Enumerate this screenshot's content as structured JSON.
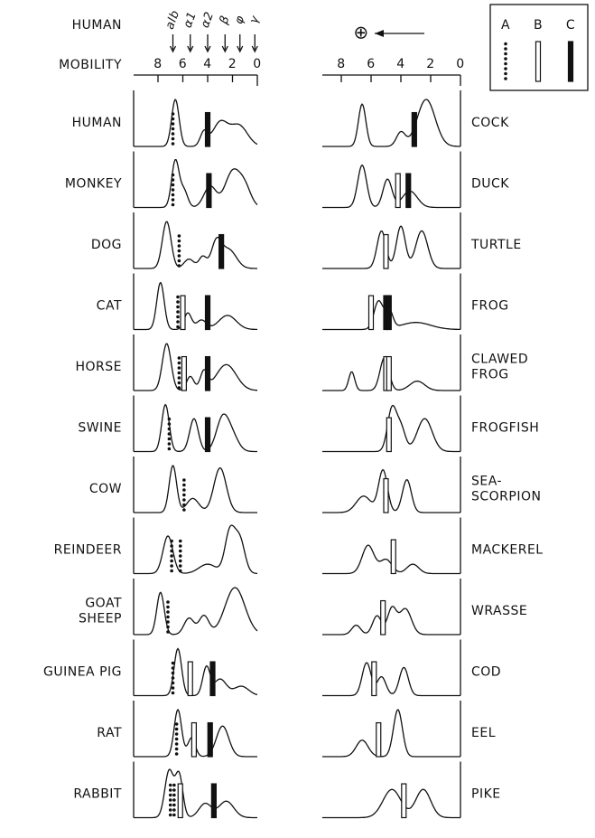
{
  "header": {
    "species": "HUMAN",
    "axis_label": "MOBILITY",
    "anode": "⊕",
    "fractions": [
      {
        "label": "alb",
        "at": 6.8
      },
      {
        "label": "α1",
        "at": 5.4
      },
      {
        "label": "α2",
        "at": 4.0
      },
      {
        "label": "β",
        "at": 2.6
      },
      {
        "label": "φ",
        "at": 1.4
      },
      {
        "label": "γ",
        "at": 0.2
      }
    ]
  },
  "axis": {
    "ticks": [
      8,
      6,
      4,
      2,
      0
    ]
  },
  "legend": [
    "A",
    "B",
    "C"
  ],
  "left": [
    {
      "label": [
        "HUMAN"
      ],
      "peaks": [
        [
          6.6,
          1.0,
          0.3
        ],
        [
          4.3,
          0.3,
          0.3
        ],
        [
          3.0,
          0.5,
          0.6
        ],
        [
          1.5,
          0.45,
          0.7
        ]
      ],
      "markers": [
        [
          "A",
          6.8
        ],
        [
          "C",
          4.0
        ]
      ]
    },
    {
      "label": [
        "MONKEY"
      ],
      "peaks": [
        [
          6.6,
          1.0,
          0.3
        ],
        [
          5.9,
          0.35,
          0.3
        ],
        [
          3.8,
          0.45,
          0.5
        ],
        [
          2.0,
          0.75,
          0.6
        ],
        [
          1.0,
          0.4,
          0.5
        ]
      ],
      "markers": [
        [
          "A",
          6.8
        ],
        [
          "C",
          3.9
        ]
      ]
    },
    {
      "label": [
        "DOG"
      ],
      "peaks": [
        [
          7.3,
          1.0,
          0.35
        ],
        [
          5.5,
          0.2,
          0.4
        ],
        [
          4.4,
          0.25,
          0.3
        ],
        [
          3.3,
          0.55,
          0.4
        ],
        [
          2.3,
          0.4,
          0.6
        ]
      ],
      "markers": [
        [
          "A",
          6.3
        ],
        [
          "C",
          2.9
        ]
      ]
    },
    {
      "label": [
        "CAT"
      ],
      "peaks": [
        [
          7.8,
          1.0,
          0.3
        ],
        [
          5.6,
          0.35,
          0.3
        ],
        [
          4.5,
          0.2,
          0.4
        ],
        [
          2.4,
          0.3,
          0.7
        ]
      ],
      "markers": [
        [
          "A",
          6.4
        ],
        [
          "B",
          6.0
        ],
        [
          "C",
          4.0
        ]
      ]
    },
    {
      "label": [
        "HORSE"
      ],
      "peaks": [
        [
          7.3,
          1.0,
          0.35
        ],
        [
          5.4,
          0.3,
          0.3
        ],
        [
          4.3,
          0.4,
          0.3
        ],
        [
          2.5,
          0.55,
          0.8
        ]
      ],
      "markers": [
        [
          "A",
          6.3
        ],
        [
          "B",
          5.9
        ],
        [
          "C",
          4.0
        ]
      ]
    },
    {
      "label": [
        "SWINE"
      ],
      "peaks": [
        [
          7.4,
          1.0,
          0.3
        ],
        [
          5.1,
          0.7,
          0.35
        ],
        [
          2.8,
          0.7,
          0.5
        ],
        [
          2.0,
          0.3,
          0.5
        ]
      ],
      "markers": [
        [
          "A",
          7.1
        ],
        [
          "C",
          4.0
        ]
      ]
    },
    {
      "label": [
        "COW"
      ],
      "peaks": [
        [
          6.8,
          1.0,
          0.3
        ],
        [
          5.2,
          0.3,
          0.5
        ],
        [
          3.0,
          0.95,
          0.5
        ]
      ],
      "markers": [
        [
          "A",
          5.9
        ]
      ]
    },
    {
      "label": [
        "REINDEER"
      ],
      "peaks": [
        [
          7.2,
          0.8,
          0.4
        ],
        [
          4.0,
          0.2,
          0.7
        ],
        [
          2.2,
          0.9,
          0.4
        ],
        [
          1.4,
          0.7,
          0.4
        ]
      ],
      "markers": [
        [
          "A",
          6.9
        ],
        [
          "A",
          6.2
        ]
      ]
    },
    {
      "label": [
        "GOAT",
        "SHEEP"
      ],
      "peaks": [
        [
          7.8,
          0.9,
          0.3
        ],
        [
          5.5,
          0.35,
          0.4
        ],
        [
          4.3,
          0.4,
          0.4
        ],
        [
          1.8,
          1.0,
          0.8
        ]
      ],
      "markers": [
        [
          "A",
          7.2
        ]
      ]
    },
    {
      "label": [
        "GUINEA PIG"
      ],
      "peaks": [
        [
          6.4,
          1.0,
          0.3
        ],
        [
          4.1,
          0.6,
          0.3
        ],
        [
          3.0,
          0.35,
          0.5
        ],
        [
          1.3,
          0.2,
          0.6
        ]
      ],
      "markers": [
        [
          "A",
          6.8
        ],
        [
          "B",
          5.4
        ],
        [
          "C",
          3.6
        ]
      ]
    },
    {
      "label": [
        "RAT"
      ],
      "peaks": [
        [
          6.4,
          1.0,
          0.3
        ],
        [
          5.3,
          0.4,
          0.3
        ],
        [
          2.8,
          0.65,
          0.5
        ]
      ],
      "markers": [
        [
          "A",
          6.5
        ],
        [
          "B",
          5.1
        ],
        [
          "C",
          3.8
        ]
      ]
    },
    {
      "label": [
        "RABBIT"
      ],
      "peaks": [
        [
          7.1,
          1.0,
          0.35
        ],
        [
          6.3,
          0.9,
          0.3
        ],
        [
          4.2,
          0.3,
          0.5
        ],
        [
          2.5,
          0.35,
          0.6
        ]
      ],
      "markers": [
        [
          "A",
          7.0
        ],
        [
          "A",
          6.7
        ],
        [
          "B",
          6.2
        ],
        [
          "C",
          3.5
        ]
      ]
    }
  ],
  "right": [
    {
      "label": [
        "COCK"
      ],
      "peaks": [
        [
          6.6,
          0.9,
          0.25
        ],
        [
          4.0,
          0.3,
          0.3
        ],
        [
          2.3,
          1.0,
          0.6
        ]
      ],
      "markers": [
        [
          "C",
          3.1
        ]
      ]
    },
    {
      "label": [
        "DUCK"
      ],
      "peaks": [
        [
          6.6,
          0.9,
          0.3
        ],
        [
          4.9,
          0.6,
          0.3
        ],
        [
          3.4,
          0.35,
          0.5
        ]
      ],
      "markers": [
        [
          "B",
          4.2
        ],
        [
          "C",
          3.5
        ]
      ]
    },
    {
      "label": [
        "TURTLE"
      ],
      "peaks": [
        [
          5.3,
          0.8,
          0.3
        ],
        [
          4.0,
          0.9,
          0.3
        ],
        [
          2.6,
          0.8,
          0.4
        ]
      ],
      "markers": [
        [
          "B",
          5.0
        ]
      ]
    },
    {
      "label": [
        "FROG"
      ],
      "peaks": [
        [
          5.5,
          0.6,
          0.3
        ],
        [
          4.8,
          0.4,
          0.25
        ],
        [
          3.0,
          0.15,
          1.0
        ]
      ],
      "markers": [
        [
          "B",
          6.0
        ],
        [
          "C",
          5.0
        ],
        [
          "C",
          4.8
        ]
      ]
    },
    {
      "label": [
        "CLAWED",
        "FROG"
      ],
      "peaks": [
        [
          7.3,
          0.4,
          0.2
        ],
        [
          5.1,
          0.7,
          0.3
        ],
        [
          2.9,
          0.2,
          0.5
        ]
      ],
      "markers": [
        [
          "B",
          5.0
        ],
        [
          "B",
          4.8
        ]
      ]
    },
    {
      "label": [
        "FROGFISH"
      ],
      "peaks": [
        [
          4.6,
          0.9,
          0.3
        ],
        [
          4.0,
          0.5,
          0.3
        ],
        [
          2.4,
          0.7,
          0.5
        ]
      ],
      "markers": [
        [
          "B",
          4.8
        ]
      ]
    },
    {
      "label": [
        "SEA-",
        "SCORPION"
      ],
      "peaks": [
        [
          6.5,
          0.35,
          0.5
        ],
        [
          5.2,
          0.9,
          0.3
        ],
        [
          3.6,
          0.7,
          0.3
        ]
      ],
      "markers": [
        [
          "B",
          5.0
        ]
      ]
    },
    {
      "label": [
        "MACKEREL"
      ],
      "peaks": [
        [
          6.2,
          0.6,
          0.4
        ],
        [
          5.0,
          0.3,
          0.4
        ],
        [
          3.2,
          0.2,
          0.4
        ]
      ],
      "markers": [
        [
          "B",
          4.5
        ]
      ]
    },
    {
      "label": [
        "WRASSE"
      ],
      "peaks": [
        [
          7.0,
          0.2,
          0.3
        ],
        [
          5.6,
          0.4,
          0.3
        ],
        [
          4.6,
          0.55,
          0.3
        ],
        [
          3.7,
          0.55,
          0.4
        ]
      ],
      "markers": [
        [
          "B",
          5.2
        ]
      ]
    },
    {
      "label": [
        "COD"
      ],
      "peaks": [
        [
          6.3,
          0.7,
          0.3
        ],
        [
          5.3,
          0.4,
          0.3
        ],
        [
          3.8,
          0.6,
          0.3
        ]
      ],
      "markers": [
        [
          "B",
          5.8
        ]
      ]
    },
    {
      "label": [
        "EEL"
      ],
      "peaks": [
        [
          6.6,
          0.35,
          0.4
        ],
        [
          4.2,
          1.0,
          0.3
        ]
      ],
      "markers": [
        [
          "B",
          5.5
        ]
      ]
    },
    {
      "label": [
        "PIKE"
      ],
      "peaks": [
        [
          4.6,
          0.6,
          0.6
        ],
        [
          2.5,
          0.6,
          0.5
        ]
      ],
      "markers": [
        [
          "B",
          3.8
        ]
      ]
    }
  ]
}
